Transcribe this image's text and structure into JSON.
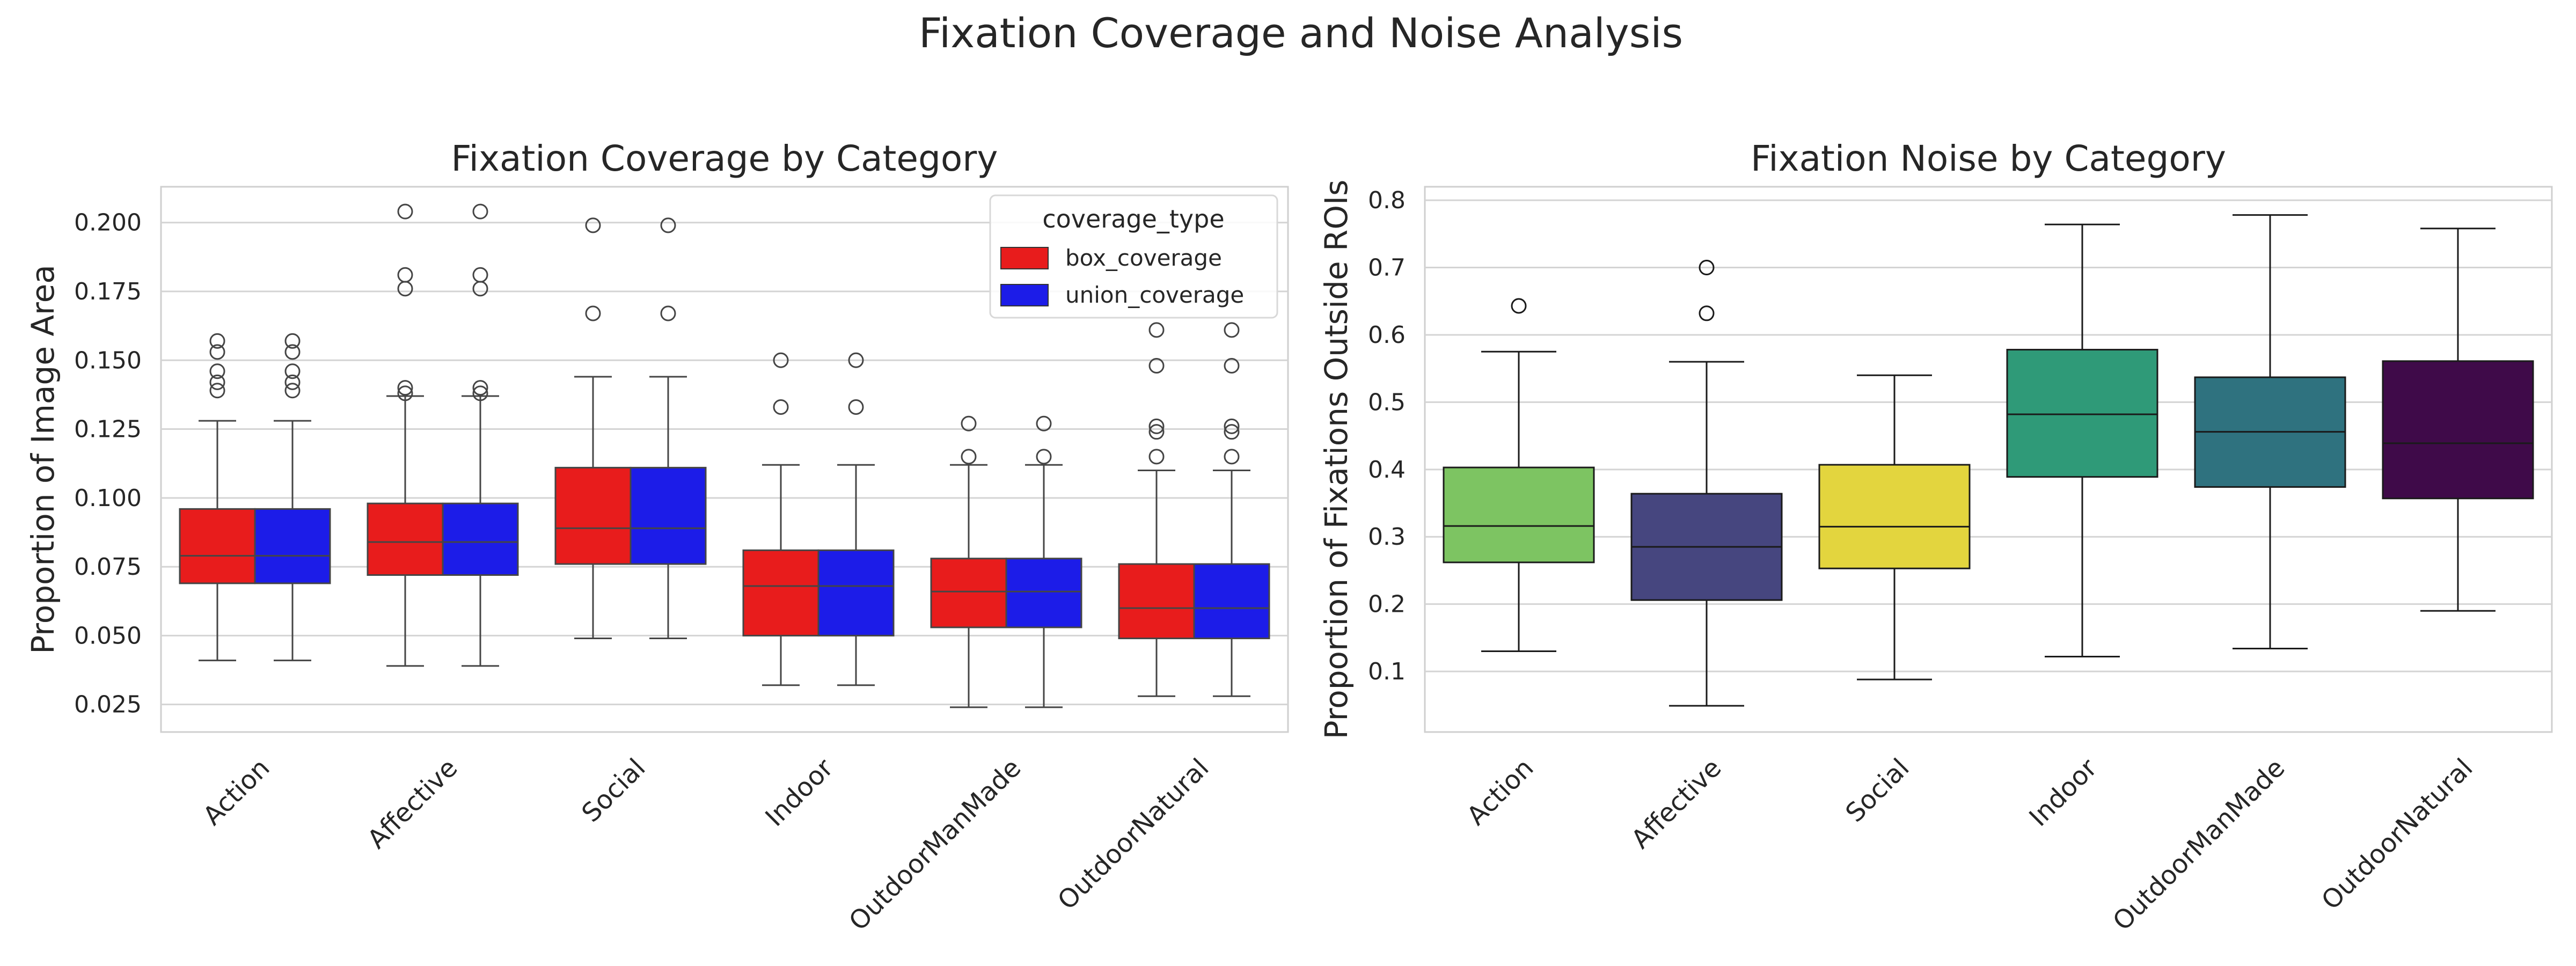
{
  "suptitle": "Fixation Coverage and Noise Analysis",
  "chart_data": [
    {
      "type": "box",
      "title": "Fixation Coverage by Category",
      "xlabel": "",
      "ylabel": "Proportion of Image Area",
      "ylim": [
        0.015,
        0.213
      ],
      "yticks": [
        0.025,
        0.05,
        0.075,
        0.1,
        0.125,
        0.15,
        0.175,
        0.2
      ],
      "ytick_labels": [
        "0.025",
        "0.050",
        "0.075",
        "0.100",
        "0.125",
        "0.150",
        "0.175",
        "0.200"
      ],
      "grid": true,
      "categories": [
        "Action",
        "Affective",
        "Social",
        "Indoor",
        "OutdoorManMade",
        "OutdoorNatural"
      ],
      "legend": {
        "title": "coverage_type",
        "position": "top-right"
      },
      "series": [
        {
          "name": "box_coverage",
          "color": "#e81c1c",
          "boxes": [
            {
              "whislo": 0.041,
              "q1": 0.069,
              "med": 0.079,
              "q3": 0.096,
              "whishi": 0.128,
              "fliers": [
                0.139,
                0.142,
                0.146,
                0.153,
                0.157
              ]
            },
            {
              "whislo": 0.039,
              "q1": 0.072,
              "med": 0.084,
              "q3": 0.098,
              "whishi": 0.137,
              "fliers": [
                0.138,
                0.14,
                0.176,
                0.181,
                0.204
              ]
            },
            {
              "whislo": 0.049,
              "q1": 0.076,
              "med": 0.089,
              "q3": 0.111,
              "whishi": 0.144,
              "fliers": [
                0.167,
                0.199
              ]
            },
            {
              "whislo": 0.032,
              "q1": 0.05,
              "med": 0.068,
              "q3": 0.081,
              "whishi": 0.112,
              "fliers": [
                0.133,
                0.15
              ]
            },
            {
              "whislo": 0.024,
              "q1": 0.053,
              "med": 0.066,
              "q3": 0.078,
              "whishi": 0.112,
              "fliers": [
                0.115,
                0.127
              ]
            },
            {
              "whislo": 0.028,
              "q1": 0.049,
              "med": 0.06,
              "q3": 0.076,
              "whishi": 0.11,
              "fliers": [
                0.115,
                0.124,
                0.126,
                0.148,
                0.161
              ]
            }
          ]
        },
        {
          "name": "union_coverage",
          "color": "#1c1ce8",
          "boxes": [
            {
              "whislo": 0.041,
              "q1": 0.069,
              "med": 0.079,
              "q3": 0.096,
              "whishi": 0.128,
              "fliers": [
                0.139,
                0.142,
                0.146,
                0.153,
                0.157
              ]
            },
            {
              "whislo": 0.039,
              "q1": 0.072,
              "med": 0.084,
              "q3": 0.098,
              "whishi": 0.137,
              "fliers": [
                0.138,
                0.14,
                0.176,
                0.181,
                0.204
              ]
            },
            {
              "whislo": 0.049,
              "q1": 0.076,
              "med": 0.089,
              "q3": 0.111,
              "whishi": 0.144,
              "fliers": [
                0.167,
                0.199
              ]
            },
            {
              "whislo": 0.032,
              "q1": 0.05,
              "med": 0.068,
              "q3": 0.081,
              "whishi": 0.112,
              "fliers": [
                0.133,
                0.15
              ]
            },
            {
              "whislo": 0.024,
              "q1": 0.053,
              "med": 0.066,
              "q3": 0.078,
              "whishi": 0.112,
              "fliers": [
                0.115,
                0.127
              ]
            },
            {
              "whislo": 0.028,
              "q1": 0.049,
              "med": 0.06,
              "q3": 0.076,
              "whishi": 0.11,
              "fliers": [
                0.115,
                0.124,
                0.126,
                0.148,
                0.161
              ]
            }
          ]
        }
      ]
    },
    {
      "type": "box",
      "title": "Fixation Noise by Category",
      "xlabel": "",
      "ylabel": "Proportion of Fixations Outside ROIs",
      "ylim": [
        0.01,
        0.82
      ],
      "yticks": [
        0.1,
        0.2,
        0.3,
        0.4,
        0.5,
        0.6,
        0.7,
        0.8
      ],
      "ytick_labels": [
        "0.1",
        "0.2",
        "0.3",
        "0.4",
        "0.5",
        "0.6",
        "0.7",
        "0.8"
      ],
      "grid": true,
      "categories": [
        "Action",
        "Affective",
        "Social",
        "Indoor",
        "OutdoorManMade",
        "OutdoorNatural"
      ],
      "colors": [
        "#7dc462",
        "#46467f",
        "#e3d53e",
        "#2f9a78",
        "#2f727f",
        "#3f0a49"
      ],
      "boxes": [
        {
          "whislo": 0.13,
          "q1": 0.262,
          "med": 0.316,
          "q3": 0.403,
          "whishi": 0.575,
          "fliers": [
            0.643
          ]
        },
        {
          "whislo": 0.049,
          "q1": 0.206,
          "med": 0.285,
          "q3": 0.364,
          "whishi": 0.56,
          "fliers": [
            0.632,
            0.7
          ]
        },
        {
          "whislo": 0.088,
          "q1": 0.253,
          "med": 0.315,
          "q3": 0.407,
          "whishi": 0.54,
          "fliers": []
        },
        {
          "whislo": 0.122,
          "q1": 0.389,
          "med": 0.482,
          "q3": 0.578,
          "whishi": 0.764,
          "fliers": []
        },
        {
          "whislo": 0.134,
          "q1": 0.374,
          "med": 0.456,
          "q3": 0.537,
          "whishi": 0.778,
          "fliers": []
        },
        {
          "whislo": 0.19,
          "q1": 0.357,
          "med": 0.439,
          "q3": 0.561,
          "whishi": 0.758,
          "fliers": []
        }
      ]
    }
  ]
}
